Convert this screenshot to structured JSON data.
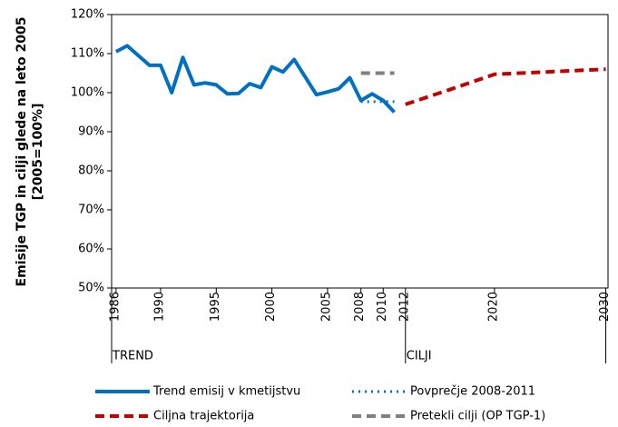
{
  "chart_data": {
    "type": "line",
    "ylabel": [
      "Emisije TGP in cilji glede na leto 2005",
      "[2005=100%]"
    ],
    "xlim": [
      1985.6,
      2030.2
    ],
    "xticks": [
      1986,
      1990,
      1995,
      2000,
      2005,
      2008,
      2010,
      2012,
      2020,
      2030
    ],
    "ylim": [
      50,
      120
    ],
    "yticks": [
      {
        "value": 50,
        "label": "50%"
      },
      {
        "value": 60,
        "label": "60%"
      },
      {
        "value": 70,
        "label": "70%"
      },
      {
        "value": 80,
        "label": "80%"
      },
      {
        "value": 90,
        "label": "90%"
      },
      {
        "value": 100,
        "label": "100%"
      },
      {
        "value": 110,
        "label": "110%"
      },
      {
        "value": 120,
        "label": "120%"
      }
    ],
    "sections": [
      "TREND",
      "CILJI"
    ],
    "series": [
      {
        "name": "Trend emisij v kmetijstvu",
        "color": "#0070c0",
        "style": "solid",
        "x": [
          1986,
          1987,
          1988,
          1989,
          1990,
          1991,
          1992,
          1993,
          1994,
          1995,
          1996,
          1997,
          1998,
          1999,
          2000,
          2001,
          2002,
          2003,
          2004,
          2005,
          2006,
          2007,
          2008,
          2009,
          2010,
          2011
        ],
        "values": [
          110.5,
          112,
          109.5,
          107,
          107,
          100,
          109,
          102,
          102.5,
          102,
          99.7,
          99.8,
          102.3,
          101.3,
          106.6,
          105.3,
          108.5,
          104,
          99.5,
          100.2,
          101,
          103.8,
          98,
          99.7,
          98,
          95
        ]
      },
      {
        "name": "Povprečje 2008-2011",
        "color": "#0070c0",
        "style": "dotted",
        "x": [
          2008,
          2011
        ],
        "values": [
          97.7,
          97.7
        ]
      },
      {
        "name": "Ciljna trajektorija",
        "color": "#c00000",
        "style": "dashed",
        "x": [
          2012,
          2016,
          2020,
          2030
        ],
        "values": [
          97,
          100.8,
          104.7,
          106
        ]
      },
      {
        "name": "Pretekli cilji (OP TGP-1)",
        "color": "#808080",
        "style": "dashed",
        "x": [
          2008,
          2011
        ],
        "values": [
          105,
          105
        ]
      }
    ]
  }
}
